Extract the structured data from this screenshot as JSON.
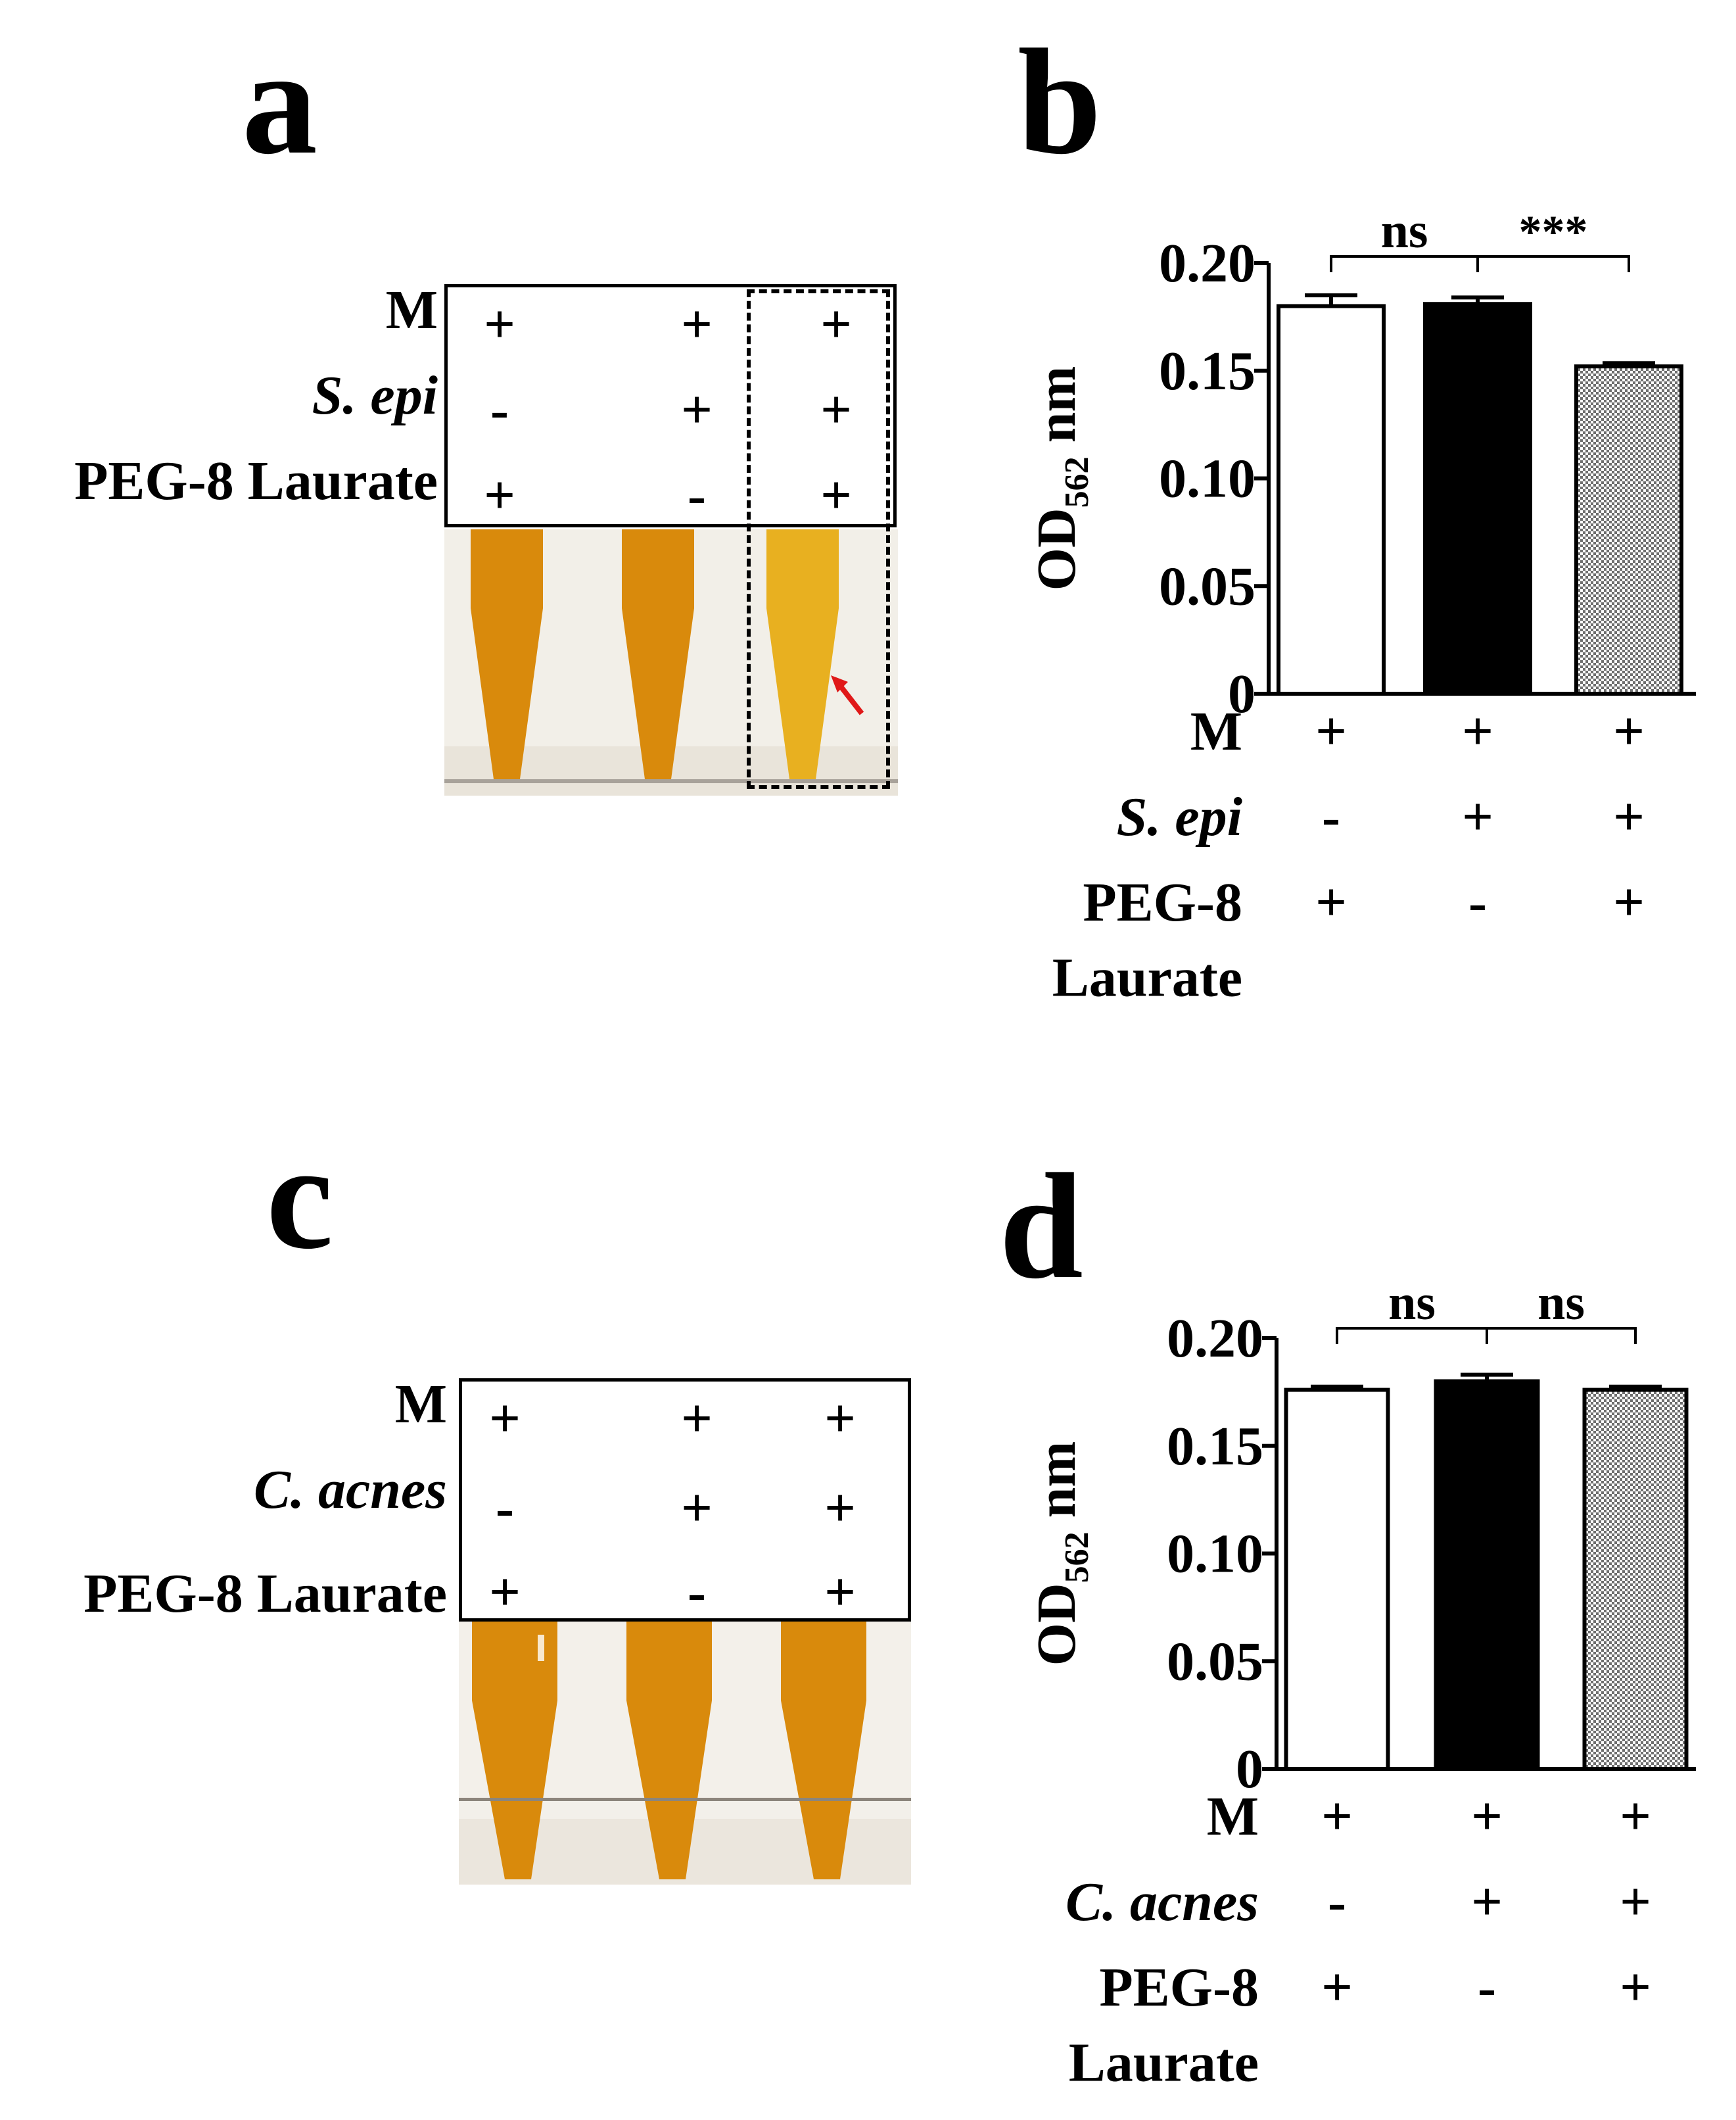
{
  "panels": {
    "a": "a",
    "b": "b",
    "c": "c",
    "d": "d"
  },
  "tables": {
    "a": {
      "rows": [
        {
          "label": "M",
          "italic": false,
          "symbols": [
            "+",
            "+",
            "+"
          ]
        },
        {
          "label": "S. epi",
          "italic": true,
          "symbols": [
            "-",
            "+",
            "+"
          ]
        },
        {
          "label": "PEG-8 Laurate",
          "italic": false,
          "symbols": [
            "+",
            "-",
            "+"
          ]
        }
      ]
    },
    "c": {
      "rows": [
        {
          "label": "M",
          "italic": false,
          "symbols": [
            "+",
            "+",
            "+"
          ]
        },
        {
          "label": "C. acnes",
          "italic": true,
          "symbols": [
            "-",
            "+",
            "+"
          ]
        },
        {
          "label": "PEG-8 Laurate",
          "italic": false,
          "symbols": [
            "+",
            "-",
            "+"
          ]
        }
      ]
    }
  },
  "colors": {
    "tube_liquid": "#d98a0c",
    "tube_liquid_light": "#e8b020",
    "photo_bg": "#f2efe8",
    "arrow": "#e01818",
    "bar_open": "#ffffff",
    "bar_filled": "#000000",
    "bar_hatched": "#6e6e6e"
  },
  "chart_data": [
    {
      "type": "bar",
      "panel": "b",
      "ylabel": "OD",
      "ylabel_sub": "562",
      "ylabel_unit": " nm",
      "ylim": [
        0,
        0.2
      ],
      "yticks": [
        0,
        0.05,
        0.1,
        0.15,
        0.2
      ],
      "ytick_labels": [
        "0",
        "0.05",
        "0.10",
        "0.15",
        "0.20"
      ],
      "values": [
        0.18,
        0.181,
        0.152
      ],
      "errors": [
        0.005,
        0.003,
        0.0015
      ],
      "styles": [
        "open",
        "filled",
        "hatched"
      ],
      "significance": [
        {
          "from": 0,
          "to": 1,
          "label": "ns"
        },
        {
          "from": 1,
          "to": 2,
          "label": "***"
        }
      ],
      "conditions": [
        {
          "label": "M",
          "italic": false,
          "symbols": [
            "+",
            "+",
            "+"
          ]
        },
        {
          "label": "S. epi",
          "italic": true,
          "symbols": [
            "-",
            "+",
            "+"
          ]
        },
        {
          "label": "PEG-8",
          "label2": "Laurate",
          "italic": false,
          "symbols": [
            "+",
            "-",
            "+"
          ]
        }
      ]
    },
    {
      "type": "bar",
      "panel": "d",
      "ylabel": "OD",
      "ylabel_sub": "562",
      "ylabel_unit": " nm",
      "ylim": [
        0,
        0.2
      ],
      "yticks": [
        0,
        0.05,
        0.1,
        0.15,
        0.2
      ],
      "ytick_labels": [
        "0",
        "0.05",
        "0.10",
        "0.15",
        "0.20"
      ],
      "values": [
        0.176,
        0.18,
        0.176
      ],
      "errors": [
        0.0015,
        0.003,
        0.0015
      ],
      "styles": [
        "open",
        "filled",
        "hatched"
      ],
      "significance": [
        {
          "from": 0,
          "to": 1,
          "label": "ns"
        },
        {
          "from": 1,
          "to": 2,
          "label": "ns"
        }
      ],
      "conditions": [
        {
          "label": "M",
          "italic": false,
          "symbols": [
            "+",
            "+",
            "+"
          ]
        },
        {
          "label": "C. acnes",
          "italic": true,
          "symbols": [
            "-",
            "+",
            "+"
          ]
        },
        {
          "label": "PEG-8",
          "label2": "Laurate",
          "italic": false,
          "symbols": [
            "+",
            "-",
            "+"
          ]
        }
      ]
    }
  ]
}
